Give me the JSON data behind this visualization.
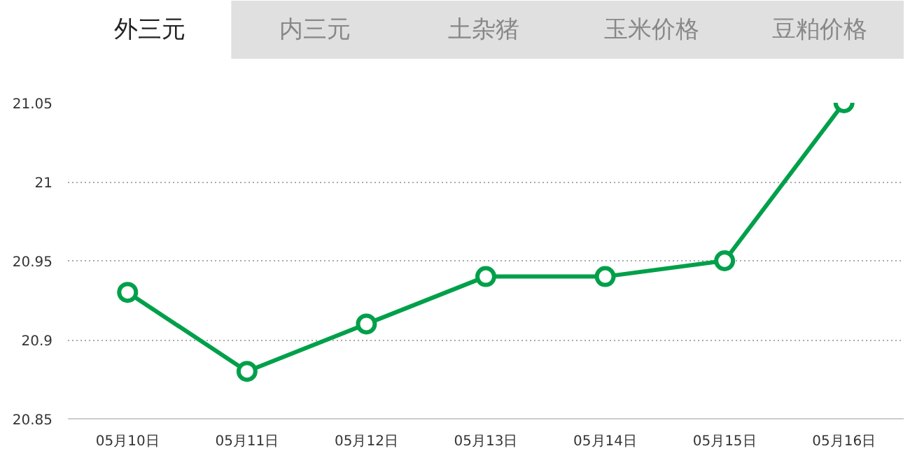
{
  "chart_data": {
    "type": "line",
    "title": "外三元",
    "annotations": [
      "内三元",
      "土杂猪",
      "玉米价格",
      "豆粕价格"
    ],
    "categories": [
      "05月10日",
      "05月11日",
      "05月12日",
      "05月13日",
      "05月14日",
      "05月15日",
      "05月16日"
    ],
    "series": [
      {
        "color": "#00a04a",
        "values": [
          20.93,
          20.88,
          20.91,
          20.94,
          20.94,
          20.95,
          21.05
        ]
      }
    ],
    "ylim": [
      20.85,
      21.05
    ],
    "yticks": [
      20.85,
      20.9,
      20.95,
      21,
      21.05
    ],
    "grid": "y",
    "marker": "circle",
    "line_style": "solid"
  }
}
